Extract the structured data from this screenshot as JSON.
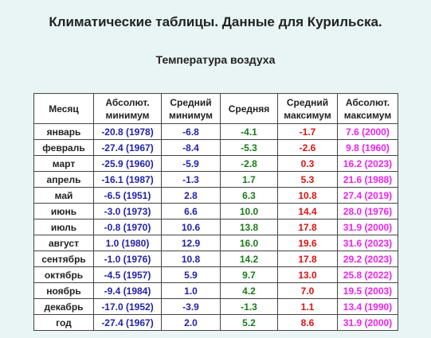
{
  "page": {
    "title": "Климатические таблицы. Данные для Курильска.",
    "section_title": "Температура воздуха"
  },
  "table": {
    "headers": [
      "Месяц",
      "Абсолют. минимум",
      "Средний минимум",
      "Средняя",
      "Средний максимум",
      "Абсолют. максимум"
    ],
    "rows": [
      [
        "январь",
        "-20.8 (1978)",
        "-6.8",
        "-4.1",
        "-1.7",
        "7.6 (2000)"
      ],
      [
        "февраль",
        "-27.4 (1967)",
        "-8.4",
        "-5.3",
        "-2.6",
        "9.8 (1960)"
      ],
      [
        "март",
        "-25.9 (1960)",
        "-5.9",
        "-2.8",
        "0.3",
        "16.2 (2023)"
      ],
      [
        "апрель",
        "-16.1 (1987)",
        "-1.3",
        "1.7",
        "5.3",
        "21.6 (1988)"
      ],
      [
        "май",
        "-6.5 (1951)",
        "2.8",
        "6.3",
        "10.8",
        "27.4 (2019)"
      ],
      [
        "июнь",
        "-3.0 (1973)",
        "6.6",
        "10.0",
        "14.4",
        "28.0 (1976)"
      ],
      [
        "июль",
        "-0.8 (1970)",
        "10.6",
        "13.8",
        "17.8",
        "31.9 (2000)"
      ],
      [
        "август",
        "1.0 (1980)",
        "12.9",
        "16.0",
        "19.6",
        "31.6 (2023)"
      ],
      [
        "сентябрь",
        "-1.0 (1976)",
        "10.8",
        "14.2",
        "17.8",
        "29.2 (2023)"
      ],
      [
        "октябрь",
        "-4.5 (1957)",
        "5.9",
        "9.7",
        "13.0",
        "25.8 (2022)"
      ],
      [
        "ноябрь",
        "-9.4 (1984)",
        "1.0",
        "4.2",
        "7.0",
        "19.5 (2003)"
      ],
      [
        "декабрь",
        "-17.0 (1952)",
        "-3.9",
        "-1.3",
        "1.1",
        "13.4 (1990)"
      ],
      [
        "год",
        "-27.4 (1967)",
        "2.0",
        "5.2",
        "8.6",
        "31.9 (2000)"
      ]
    ]
  },
  "colors": {
    "background": "#e9f5f5",
    "abs_min": "#2222aa",
    "mean_min": "#2222aa",
    "mean": "#1a7a1a",
    "mean_max": "#dd1111",
    "abs_max": "#ee22ee"
  }
}
